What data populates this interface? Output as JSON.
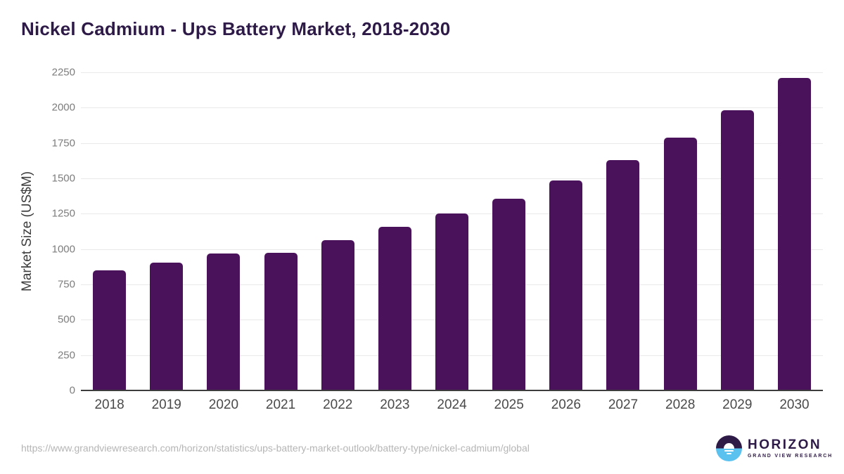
{
  "header": {
    "title": "Nickel Cadmium - Ups Battery Market, 2018-2030"
  },
  "chart_data": {
    "type": "bar",
    "title": "Nickel Cadmium - Ups Battery Market, 2018-2030",
    "categories": [
      "2018",
      "2019",
      "2020",
      "2021",
      "2022",
      "2023",
      "2024",
      "2025",
      "2026",
      "2027",
      "2028",
      "2029",
      "2030"
    ],
    "values": [
      850,
      905,
      970,
      975,
      1065,
      1155,
      1250,
      1355,
      1485,
      1630,
      1790,
      1980,
      2210
    ],
    "xlabel": "",
    "ylabel": "Market Size (US$M)",
    "ylim": [
      0,
      2250
    ],
    "yticks": [
      0,
      250,
      500,
      750,
      1000,
      1250,
      1500,
      1750,
      2000,
      2250
    ],
    "grid": "horizontal",
    "legend_position": "none",
    "bar_color": "#4a125a"
  },
  "colors": {
    "title_text": "#2e1a47",
    "gridline": "#e9e9e9",
    "axis_line": "#3d3d3d",
    "ytick_text": "#7d7d7d",
    "xlabel_text": "#4a4a4a",
    "url_text": "#b5b5b5",
    "logo_purple": "#2e1a47",
    "logo_blue": "#5bc1ee"
  },
  "footer": {
    "source_url": "https://www.grandviewresearch.com/horizon/statistics/ups-battery-market-outlook/battery-type/nickel-cadmium/global",
    "logo": {
      "name": "HORIZON",
      "subtitle": "GRAND VIEW RESEARCH"
    }
  }
}
